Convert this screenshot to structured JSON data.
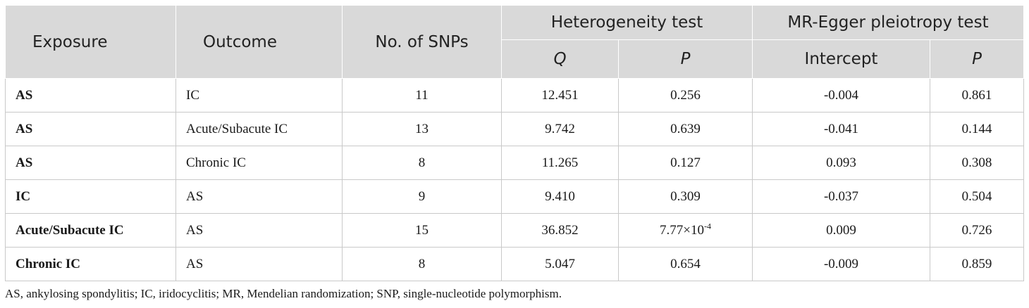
{
  "table": {
    "headers": {
      "exposure": "Exposure",
      "outcome": "Outcome",
      "snps": "No. of SNPs",
      "heterogeneity": "Heterogeneity test",
      "egger": "MR-Egger pleiotropy test",
      "q": "Q",
      "p_het": "P",
      "intercept": "Intercept",
      "p_egger": "P"
    },
    "rows": [
      {
        "exposure": "AS",
        "outcome": "IC",
        "snps": "11",
        "q": "12.451",
        "p_het": "0.256",
        "p_het_exp": "",
        "intercept": "-0.004",
        "p_egger": "0.861"
      },
      {
        "exposure": "AS",
        "outcome": "Acute/Subacute IC",
        "snps": "13",
        "q": "9.742",
        "p_het": "0.639",
        "p_het_exp": "",
        "intercept": "-0.041",
        "p_egger": "0.144"
      },
      {
        "exposure": "AS",
        "outcome": "Chronic IC",
        "snps": "8",
        "q": "11.265",
        "p_het": "0.127",
        "p_het_exp": "",
        "intercept": "0.093",
        "p_egger": "0.308"
      },
      {
        "exposure": "IC",
        "outcome": "AS",
        "snps": "9",
        "q": "9.410",
        "p_het": "0.309",
        "p_het_exp": "",
        "intercept": "-0.037",
        "p_egger": "0.504"
      },
      {
        "exposure": "Acute/Subacute IC",
        "outcome": "AS",
        "snps": "15",
        "q": "36.852",
        "p_het": "7.77×10",
        "p_het_exp": "-4",
        "intercept": "0.009",
        "p_egger": "0.726"
      },
      {
        "exposure": "Chronic IC",
        "outcome": "AS",
        "snps": "8",
        "q": "5.047",
        "p_het": "0.654",
        "p_het_exp": "",
        "intercept": "-0.009",
        "p_egger": "0.859"
      }
    ]
  },
  "footnote": "AS, ankylosing spondylitis; IC, iridocyclitis; MR, Mendelian randomization; SNP, single-nucleotide polymorphism."
}
